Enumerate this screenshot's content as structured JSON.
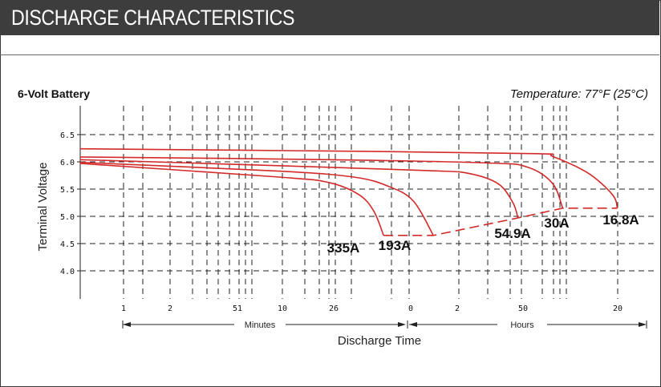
{
  "header": {
    "title": "DISCHARGE CHARACTERISTICS"
  },
  "chart_data": {
    "type": "line",
    "subtitle_left": "6-Volt Battery",
    "subtitle_right": "Temperature: 77°F (25°C)",
    "ylabel": "Terminal Voltage",
    "xlabel": "Discharge Time",
    "yticks": [
      "6.5",
      "6.0",
      "5.5",
      "5.0",
      "4.5",
      "4.0"
    ],
    "ylim": [
      3.5,
      6.75
    ],
    "xticks": [
      "1",
      "2",
      "51",
      "10",
      "26",
      "0",
      "2",
      "50",
      "20"
    ],
    "x_ranges": [
      "Minutes",
      "Hours"
    ],
    "x_scale": "log",
    "grid": true,
    "colors": {
      "series": "#d42a2a",
      "header": "#3d3d3d"
    },
    "series": [
      {
        "name": "335A",
        "points": [
          [
            0.0,
            5.97
          ],
          [
            0.4,
            5.72
          ],
          [
            0.5,
            5.62
          ],
          [
            0.56,
            5.4
          ],
          [
            0.59,
            5.1
          ],
          [
            0.61,
            4.65
          ]
        ]
      },
      {
        "name": "193A",
        "points": [
          [
            0.0,
            5.99
          ],
          [
            0.4,
            5.83
          ],
          [
            0.55,
            5.72
          ],
          [
            0.62,
            5.55
          ],
          [
            0.67,
            5.28
          ],
          [
            0.71,
            4.65
          ]
        ]
      },
      {
        "name": "54.9A",
        "points": [
          [
            0.0,
            6.04
          ],
          [
            0.4,
            5.93
          ],
          [
            0.7,
            5.84
          ],
          [
            0.78,
            5.79
          ],
          [
            0.84,
            5.6
          ],
          [
            0.87,
            5.25
          ],
          [
            0.88,
            4.97
          ]
        ]
      },
      {
        "name": "30A",
        "points": [
          [
            0.0,
            6.09
          ],
          [
            0.5,
            6.04
          ],
          [
            0.82,
            5.98
          ],
          [
            0.9,
            5.9
          ],
          [
            0.95,
            5.6
          ],
          [
            0.97,
            5.15
          ]
        ]
      },
      {
        "name": "16.8A",
        "points": [
          [
            0.0,
            6.24
          ],
          [
            0.6,
            6.19
          ],
          [
            0.92,
            6.15
          ],
          [
            0.95,
            6.1
          ],
          [
            1.02,
            5.8
          ],
          [
            1.07,
            5.4
          ],
          [
            1.08,
            5.15
          ]
        ]
      }
    ],
    "cutoff_line": [
      [
        0.61,
        4.65
      ],
      [
        0.71,
        4.65
      ],
      [
        0.88,
        4.97
      ],
      [
        0.97,
        5.15
      ],
      [
        1.08,
        5.15
      ]
    ]
  }
}
